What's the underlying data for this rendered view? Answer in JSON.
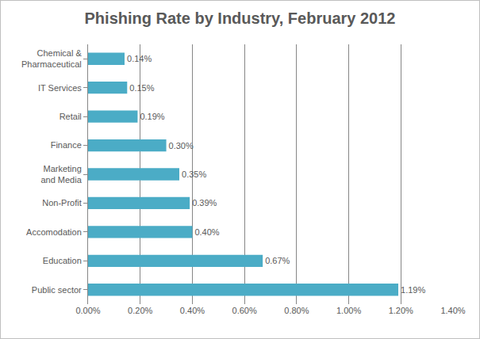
{
  "chart_data": {
    "type": "bar",
    "orientation": "horizontal",
    "title": "Phishing Rate by Industry, February 2012",
    "categories": [
      "Chemical & Pharmaceutical",
      "IT Services",
      "Retail",
      "Finance",
      "Marketing and Media",
      "Non-Profit",
      "Accomodation",
      "Education",
      "Public sector"
    ],
    "values": [
      0.14,
      0.15,
      0.19,
      0.3,
      0.35,
      0.39,
      0.4,
      0.67,
      1.19
    ],
    "value_labels": [
      "0.14%",
      "0.15%",
      "0.19%",
      "0.30%",
      "0.35%",
      "0.39%",
      "0.40%",
      "0.67%",
      "1.19%"
    ],
    "data_labels": true,
    "color": "#4bacc6",
    "xlim": [
      0,
      1.4
    ],
    "xticks": [
      {
        "value": 0,
        "label": "0.00%"
      },
      {
        "value": 0.2,
        "label": "0.20%"
      },
      {
        "value": 0.4,
        "label": "0.40%"
      },
      {
        "value": 0.6,
        "label": "0.60%"
      },
      {
        "value": 0.8,
        "label": "0.80%"
      },
      {
        "value": 1.0,
        "label": "1.00%"
      },
      {
        "value": 1.2,
        "label": "1.20%"
      },
      {
        "value": 1.4,
        "label": "1.40%"
      }
    ],
    "grid": true
  }
}
